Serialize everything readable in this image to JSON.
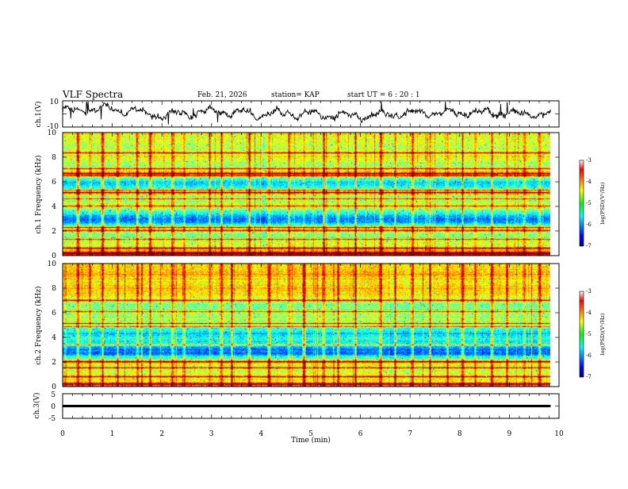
{
  "header": {
    "title": "VLF Spectra",
    "date": "Feb. 21, 2026",
    "station": "station= KAP",
    "start_ut": "start UT =  6 : 20 : 1"
  },
  "chart_data": [
    {
      "type": "line",
      "panel": "ch1-waveform",
      "ylabel": "ch.1(V)",
      "ylim": [
        -10,
        10
      ],
      "yticks": [
        "10",
        "-10"
      ],
      "x_unit": "min",
      "xlim": [
        0,
        10
      ],
      "data_extent_min": 9.83,
      "trace_envelope": {
        "x": [
          0,
          1,
          2,
          3,
          4,
          5,
          6,
          7,
          8,
          9,
          9.83
        ],
        "y_mean": [
          2.5,
          4,
          -1,
          1.5,
          -0.5,
          0.5,
          -2,
          1,
          0.5,
          1,
          -0.5
        ],
        "y_spread": 6
      },
      "color": "#000000"
    },
    {
      "type": "heatmap",
      "panel": "ch1-spectrogram",
      "ylabel": "ch.1 Frequency (kHz)",
      "ylim": [
        0,
        10
      ],
      "yticks": [
        "0",
        "2",
        "4",
        "6",
        "8",
        "10"
      ],
      "xlim": [
        0,
        10
      ],
      "data_extent_min": 9.83,
      "colormap": "jet",
      "value_label": "log(PSD)(V²/Hz)",
      "colorbar_ticks": [
        "-3",
        "-4",
        "-5",
        "-6",
        "-7"
      ],
      "color_range": [
        -7,
        -3
      ],
      "band_profile": {
        "freq_khz": [
          0,
          0.4,
          0.9,
          1.5,
          2.1,
          2.4,
          2.7,
          3.0,
          3.3,
          3.7,
          4.2,
          4.7,
          5.1,
          5.4,
          5.9,
          6.3,
          6.7,
          7.2,
          8.0,
          9.0,
          10.0
        ],
        "level": [
          -3.6,
          -4.2,
          -4.7,
          -5.2,
          -4.5,
          -5.2,
          -5.9,
          -6.2,
          -5.6,
          -5.0,
          -4.8,
          -5.1,
          -4.2,
          -5.2,
          -5.8,
          -5.2,
          -4.1,
          -5.0,
          -4.6,
          -4.8,
          -4.5
        ]
      },
      "features": {
        "horizontal_lines_khz": [
          0.1,
          0.2,
          0.6,
          1.3,
          2.0,
          2.3,
          4.0,
          4.6,
          5.1,
          5.3,
          6.5,
          6.7,
          7.1,
          8.4
        ],
        "impulse_times_min": [
          0.3,
          0.55,
          0.8,
          1.1,
          1.5,
          1.75,
          2.2,
          2.45,
          2.95,
          3.2,
          3.4,
          3.75,
          4.15,
          4.55,
          4.85,
          5.25,
          5.55,
          5.9,
          6.4,
          6.7,
          7.05,
          7.4,
          7.75,
          8.05,
          8.3,
          8.65,
          8.95,
          9.3,
          9.6
        ]
      }
    },
    {
      "type": "heatmap",
      "panel": "ch2-spectrogram",
      "ylabel": "ch.2 Frequency (kHz)",
      "ylim": [
        0,
        10
      ],
      "yticks": [
        "0",
        "2",
        "4",
        "6",
        "8",
        "10"
      ],
      "xlim": [
        0,
        10
      ],
      "data_extent_min": 9.83,
      "colormap": "jet",
      "value_label": "log(PSD)(V²/Hz)",
      "colorbar_ticks": [
        "-3",
        "-4",
        "-5",
        "-6",
        "-7"
      ],
      "color_range": [
        -7,
        -3
      ],
      "band_profile": {
        "freq_khz": [
          0,
          0.4,
          0.9,
          1.6,
          2.0,
          2.3,
          2.6,
          3.0,
          3.4,
          3.9,
          4.3,
          4.7,
          5.2,
          5.8,
          6.5,
          7.0,
          7.8,
          8.5,
          9.2,
          10.0
        ],
        "level": [
          -3.8,
          -4.4,
          -4.6,
          -4.7,
          -4.2,
          -5.3,
          -6.0,
          -6.1,
          -5.6,
          -5.3,
          -5.8,
          -5.2,
          -4.9,
          -4.8,
          -5.1,
          -4.7,
          -4.3,
          -4.5,
          -4.2,
          -4.4
        ]
      },
      "features": {
        "horizontal_lines_khz": [
          0.2,
          0.8,
          1.5,
          2.0,
          3.4,
          4.9,
          5.1,
          6.1,
          7.0
        ],
        "impulse_times_min": [
          0.3,
          0.55,
          0.8,
          1.1,
          1.5,
          1.75,
          2.2,
          2.45,
          2.95,
          3.2,
          3.4,
          3.75,
          4.15,
          4.55,
          4.85,
          5.25,
          5.55,
          5.9,
          6.4,
          6.7,
          7.05,
          7.4,
          7.75,
          8.05,
          8.3,
          8.65,
          8.95,
          9.3,
          9.6
        ]
      }
    },
    {
      "type": "line",
      "panel": "ch3-waveform",
      "ylabel": "ch.3(V)",
      "ylim": [
        -5,
        5
      ],
      "yticks": [
        "5",
        "0",
        "-5"
      ],
      "xlim": [
        0,
        10
      ],
      "data_extent_min": 9.83,
      "trace_level_v": 0,
      "trace_thickness_v": 1.0,
      "color": "#000000"
    }
  ],
  "x_axis": {
    "label": "Time  (min)",
    "ticks": [
      "0",
      "1",
      "2",
      "3",
      "4",
      "5",
      "6",
      "7",
      "8",
      "9",
      "10"
    ]
  }
}
